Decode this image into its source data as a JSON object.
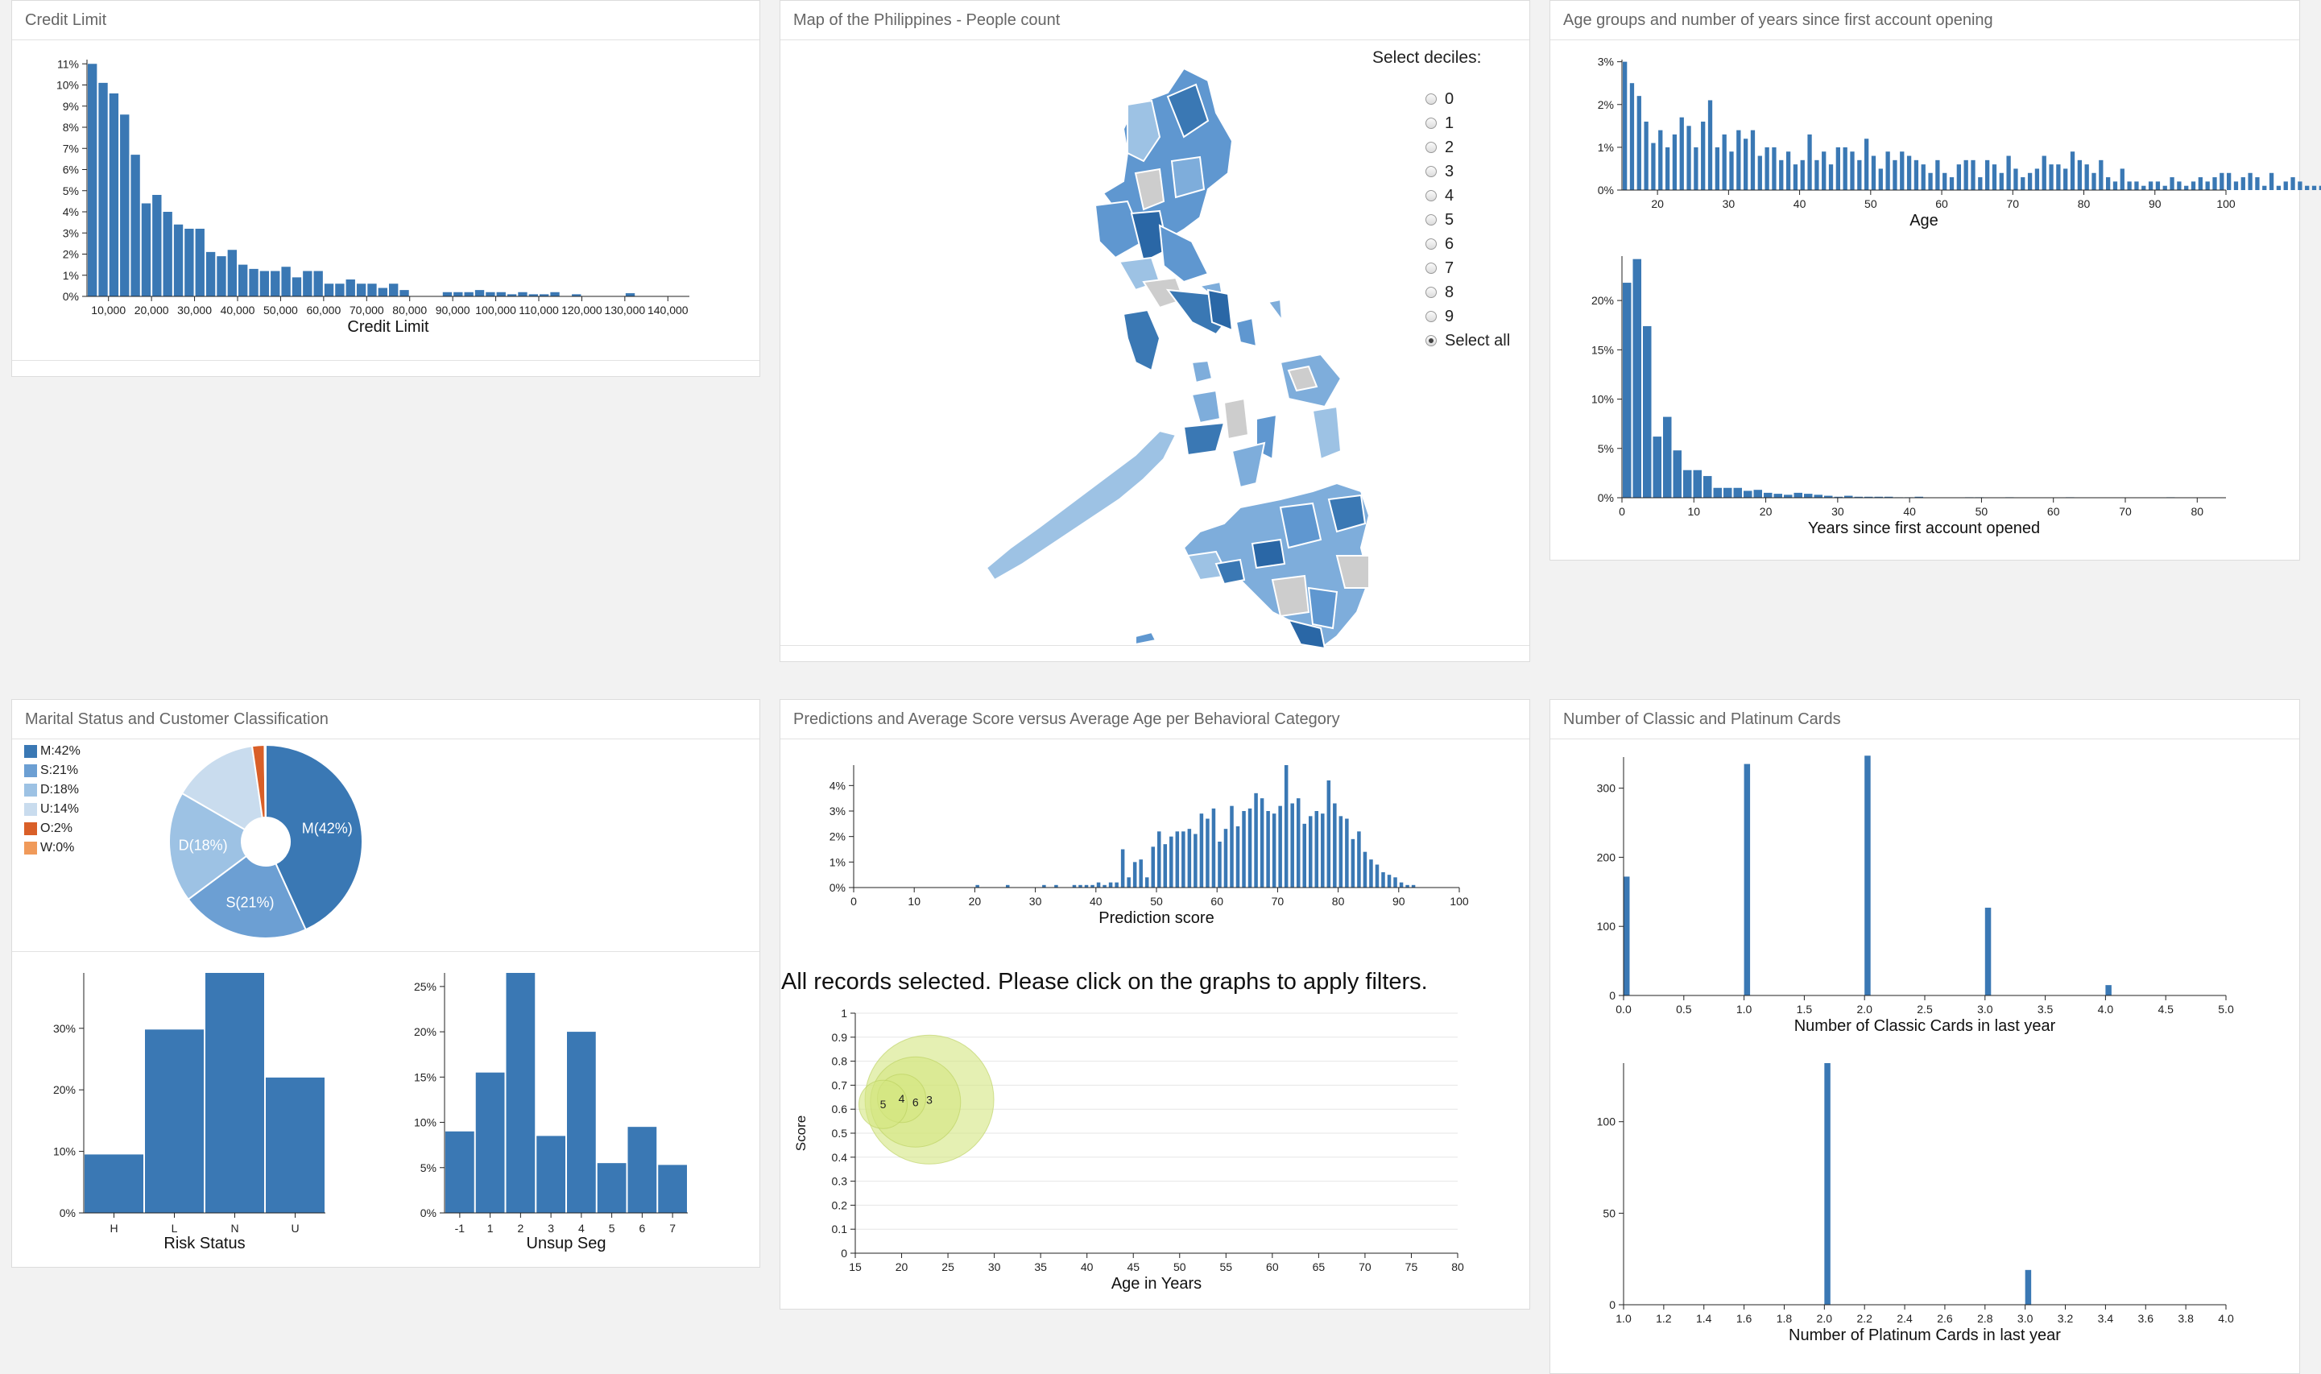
{
  "colors": {
    "bar": "#3a78b4",
    "grid": "#e6e6e6",
    "axis": "#222"
  },
  "panels": {
    "credit_limit": "Credit Limit",
    "map": "Map of the Philippines - People count",
    "age_groups": "Age groups and number of years since first account opening",
    "marital": "Marital Status and Customer Classification",
    "predictions": "Predictions and Average Score versus Average Age per Behavioral Category",
    "cards": "Number of Classic and Platinum Cards"
  },
  "deciles": {
    "title": "Select deciles:",
    "options": [
      "0",
      "1",
      "2",
      "3",
      "4",
      "5",
      "6",
      "7",
      "8",
      "9",
      "Select all"
    ],
    "selected": "Select all"
  },
  "status_message": "All records selected. Please click on the graphs to apply filters.",
  "chart_data": [
    {
      "id": "credit_limit",
      "type": "bar",
      "xlabel": "Credit Limit",
      "x_ticks": [
        "10,000",
        "20,000",
        "30,000",
        "40,000",
        "50,000",
        "60,000",
        "70,000",
        "80,000",
        "90,000",
        "100,000",
        "110,000",
        "120,000",
        "130,000",
        "140,000"
      ],
      "y_ticks": [
        "0%",
        "1%",
        "2%",
        "3%",
        "4%",
        "5%",
        "6%",
        "7%",
        "8%",
        "9%",
        "10%",
        "11%"
      ],
      "xlim": [
        5000,
        145000
      ],
      "ylim": [
        0,
        11.2
      ],
      "bin_start": 5000,
      "bin_width": 2500,
      "values": [
        11,
        10.1,
        9.6,
        8.6,
        6.7,
        4.4,
        4.8,
        4.0,
        3.4,
        3.2,
        3.2,
        2.1,
        1.9,
        2.2,
        1.5,
        1.3,
        1.2,
        1.2,
        1.4,
        0.9,
        1.2,
        1.2,
        0.6,
        0.6,
        0.8,
        0.6,
        0.6,
        0.4,
        0.6,
        0.3,
        0,
        0,
        0,
        0.2,
        0.2,
        0.2,
        0.3,
        0.2,
        0.2,
        0.1,
        0.2,
        0.1,
        0.1,
        0.2,
        0,
        0.1,
        0,
        0,
        0,
        0,
        0.15,
        0,
        0,
        0,
        0,
        0
      ]
    },
    {
      "id": "age",
      "type": "bar",
      "xlabel": "Age",
      "x_ticks": [
        "20",
        "30",
        "40",
        "50",
        "60",
        "70",
        "80",
        "90",
        "100"
      ],
      "y_ticks": [
        "0%",
        "1%",
        "2%",
        "3%"
      ],
      "xlim": [
        15,
        100
      ],
      "ylim": [
        0,
        3.05
      ],
      "x_start": 15,
      "values": [
        3.0,
        2.5,
        2.2,
        1.6,
        1.1,
        1.4,
        1.0,
        1.3,
        1.7,
        1.5,
        1.0,
        1.6,
        2.1,
        1.0,
        1.3,
        0.9,
        1.4,
        1.2,
        1.4,
        0.8,
        1.0,
        1.0,
        0.7,
        0.9,
        0.6,
        0.7,
        1.3,
        0.7,
        0.9,
        0.6,
        1.0,
        1.0,
        0.9,
        0.7,
        1.2,
        0.8,
        0.5,
        0.9,
        0.7,
        0.9,
        0.8,
        0.7,
        0.6,
        0.4,
        0.7,
        0.4,
        0.3,
        0.6,
        0.7,
        0.7,
        0.3,
        0.7,
        0.6,
        0.4,
        0.8,
        0.5,
        0.3,
        0.4,
        0.5,
        0.8,
        0.6,
        0.6,
        0.5,
        0.9,
        0.7,
        0.6,
        0.4,
        0.7,
        0.3,
        0.2,
        0.5,
        0.2,
        0.2,
        0.1,
        0.2,
        0.2,
        0.1,
        0.3,
        0.2,
        0.1,
        0.2,
        0.3,
        0.2,
        0.3,
        0.4,
        0.4,
        0.2,
        0.3,
        0.4,
        0.3,
        0.1,
        0.4,
        0.1,
        0.2,
        0.3,
        0.2,
        0.1,
        0.1,
        0.1,
        0.1
      ]
    },
    {
      "id": "years_since",
      "type": "bar",
      "xlabel": "Years since first account opened",
      "x_ticks": [
        "0",
        "10",
        "20",
        "30",
        "40",
        "50",
        "60",
        "70",
        "80"
      ],
      "y_ticks": [
        "0%",
        "5%",
        "10%",
        "15%",
        "20%"
      ],
      "xlim": [
        0,
        84
      ],
      "ylim": [
        0,
        24.5
      ],
      "bin_start": 0,
      "bin_width": 1.4,
      "values": [
        21.8,
        24.2,
        17.4,
        6.2,
        8.2,
        4.8,
        2.8,
        2.8,
        2.2,
        1.0,
        1.0,
        1.0,
        0.7,
        0.8,
        0.5,
        0.4,
        0.3,
        0.5,
        0.4,
        0.3,
        0.2,
        0.1,
        0.2,
        0.1,
        0.1,
        0.1,
        0.1,
        0.05,
        0.05,
        0.1,
        0,
        0,
        0,
        0,
        0.05,
        0.05,
        0,
        0,
        0.05,
        0,
        0,
        0,
        0,
        0,
        0.05,
        0,
        0,
        0,
        0,
        0,
        0,
        0,
        0,
        0,
        0.05,
        0,
        0,
        0,
        0
      ]
    },
    {
      "id": "marital",
      "type": "pie",
      "legend": [
        "M:42%",
        "S:21%",
        "D:18%",
        "U:14%",
        "O:2%",
        "W:0%"
      ],
      "slices": [
        {
          "name": "M",
          "value": 42,
          "label": "M(42%)",
          "color": "#3a78b4"
        },
        {
          "name": "S",
          "value": 21,
          "label": "S(21%)",
          "color": "#6c9fd3"
        },
        {
          "name": "D",
          "value": 18,
          "label": "D(18%)",
          "color": "#9dc2e4"
        },
        {
          "name": "U",
          "value": 14,
          "label": "",
          "color": "#c9dcee"
        },
        {
          "name": "O",
          "value": 2,
          "label": "",
          "color": "#d95f28"
        },
        {
          "name": "W",
          "value": 0.2,
          "label": "",
          "color": "#f09a5a"
        }
      ]
    },
    {
      "id": "risk_status",
      "type": "bar",
      "xlabel": "Risk Status",
      "categories": [
        "H",
        "L",
        "N",
        "U"
      ],
      "values": [
        9.5,
        29.8,
        39,
        22
      ],
      "y_ticks": [
        "0%",
        "10%",
        "20%",
        "30%"
      ],
      "ylim": [
        0,
        39
      ]
    },
    {
      "id": "unsup_seg",
      "type": "bar",
      "xlabel": "Unsup Seg",
      "categories": [
        "-1",
        "1",
        "2",
        "3",
        "4",
        "5",
        "6",
        "7"
      ],
      "values": [
        9,
        15.5,
        26.5,
        8.5,
        20,
        5.5,
        9.5,
        5.3
      ],
      "y_ticks": [
        "0%",
        "5%",
        "10%",
        "15%",
        "20%",
        "25%"
      ],
      "ylim": [
        0,
        26.5
      ]
    },
    {
      "id": "prediction_score",
      "type": "bar",
      "xlabel": "Prediction score",
      "x_ticks": [
        "0",
        "10",
        "20",
        "30",
        "40",
        "50",
        "60",
        "70",
        "80",
        "90",
        "100"
      ],
      "y_ticks": [
        "0%",
        "1%",
        "2%",
        "3%",
        "4%"
      ],
      "xlim": [
        0,
        100
      ],
      "ylim": [
        0,
        4.8
      ],
      "x_start": 20,
      "values": [
        0.1,
        0,
        0,
        0,
        0,
        0.1,
        0,
        0,
        0,
        0,
        0,
        0.1,
        0,
        0.1,
        0,
        0,
        0.1,
        0.1,
        0.1,
        0.1,
        0.2,
        0.1,
        0.2,
        0.2,
        1.5,
        0.4,
        1.0,
        1.1,
        0.4,
        1.6,
        2.2,
        1.7,
        2.0,
        2.2,
        2.2,
        2.3,
        2.1,
        2.9,
        2.7,
        3.1,
        1.8,
        2.3,
        3.2,
        2.4,
        3.0,
        3.1,
        3.7,
        3.5,
        3.0,
        2.9,
        3.2,
        4.8,
        3.3,
        3.5,
        2.5,
        2.8,
        3.0,
        2.9,
        4.2,
        3.3,
        2.8,
        2.7,
        1.9,
        2.2,
        1.4,
        1.1,
        0.9,
        0.6,
        0.5,
        0.4,
        0.2,
        0.1,
        0.1
      ]
    },
    {
      "id": "score_vs_age",
      "type": "scatter",
      "xlabel": "Age in Years",
      "ylabel": "Score",
      "x_ticks": [
        "15",
        "20",
        "25",
        "30",
        "35",
        "40",
        "45",
        "50",
        "55",
        "60",
        "65",
        "70",
        "75",
        "80"
      ],
      "y_ticks": [
        "0",
        "0.1",
        "0.2",
        "0.3",
        "0.4",
        "0.5",
        "0.6",
        "0.7",
        "0.8",
        "0.9",
        "1"
      ],
      "xlim": [
        15,
        80
      ],
      "ylim": [
        0,
        1
      ],
      "points": [
        {
          "label": "3",
          "x": 23,
          "y": 0.64,
          "r": 40
        },
        {
          "label": "6",
          "x": 21.5,
          "y": 0.63,
          "r": 28
        },
        {
          "label": "4",
          "x": 20,
          "y": 0.645,
          "r": 15
        },
        {
          "label": "5",
          "x": 18,
          "y": 0.62,
          "r": 15
        }
      ]
    },
    {
      "id": "classic_cards",
      "type": "bar",
      "xlabel": "Number of Classic Cards in last year",
      "x_ticks": [
        "0.0",
        "0.5",
        "1.0",
        "1.5",
        "2.0",
        "2.5",
        "3.0",
        "3.5",
        "4.0",
        "4.5",
        "5.0"
      ],
      "y_ticks": [
        "0",
        "100",
        "200",
        "300"
      ],
      "xlim": [
        0,
        5
      ],
      "ylim": [
        0,
        345
      ],
      "bars": [
        {
          "x": 0,
          "value": 172
        },
        {
          "x": 1,
          "value": 335
        },
        {
          "x": 2,
          "value": 347
        },
        {
          "x": 3,
          "value": 127
        },
        {
          "x": 4,
          "value": 15
        }
      ]
    },
    {
      "id": "platinum_cards",
      "type": "bar",
      "xlabel": "Number of Platinum Cards in last year",
      "x_ticks": [
        "1.0",
        "1.2",
        "1.4",
        "1.6",
        "1.8",
        "2.0",
        "2.2",
        "2.4",
        "2.6",
        "2.8",
        "3.0",
        "3.2",
        "3.4",
        "3.6",
        "3.8",
        "4.0"
      ],
      "y_ticks": [
        "0",
        "50",
        "100"
      ],
      "xlim": [
        1,
        4
      ],
      "ylim": [
        0,
        132
      ],
      "bars": [
        {
          "x": 2,
          "value": 132
        },
        {
          "x": 3,
          "value": 19
        }
      ]
    }
  ]
}
